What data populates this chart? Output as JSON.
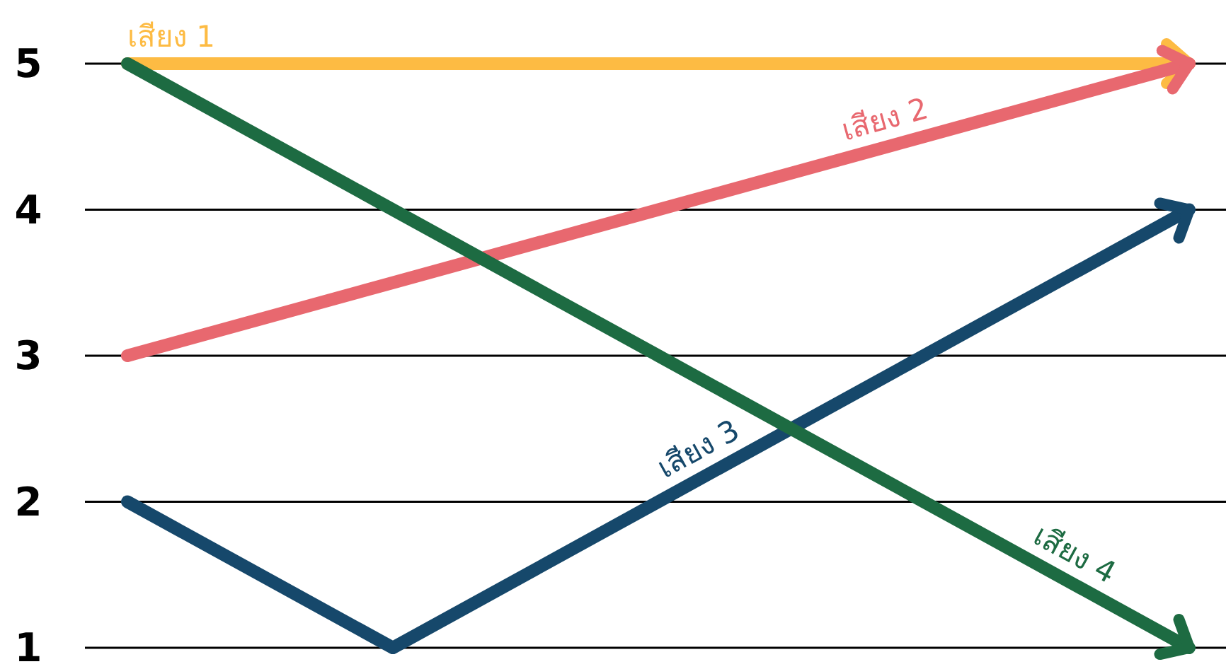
{
  "chart_data": {
    "type": "line",
    "grid": "y",
    "marker": "none",
    "line_style": "solid",
    "ylim": [
      1,
      5
    ],
    "yticks": [
      1,
      2,
      3,
      4,
      5
    ],
    "categories": [
      null,
      null,
      null,
      null,
      null
    ],
    "series": [
      {
        "name": "เสียง 1",
        "color": "#fdbb43",
        "values": [
          5,
          5,
          5,
          5,
          5
        ]
      },
      {
        "name": "เสียง 2",
        "color": "#e8686f",
        "values": [
          3,
          3.5,
          4,
          4.5,
          5
        ]
      },
      {
        "name": "เสียง 3",
        "color": "#16486b",
        "values": [
          2,
          1,
          2,
          3,
          4
        ]
      },
      {
        "name": "เสียง 4",
        "color": "#1d6b42",
        "values": [
          5,
          4,
          3,
          2,
          1
        ]
      }
    ]
  }
}
